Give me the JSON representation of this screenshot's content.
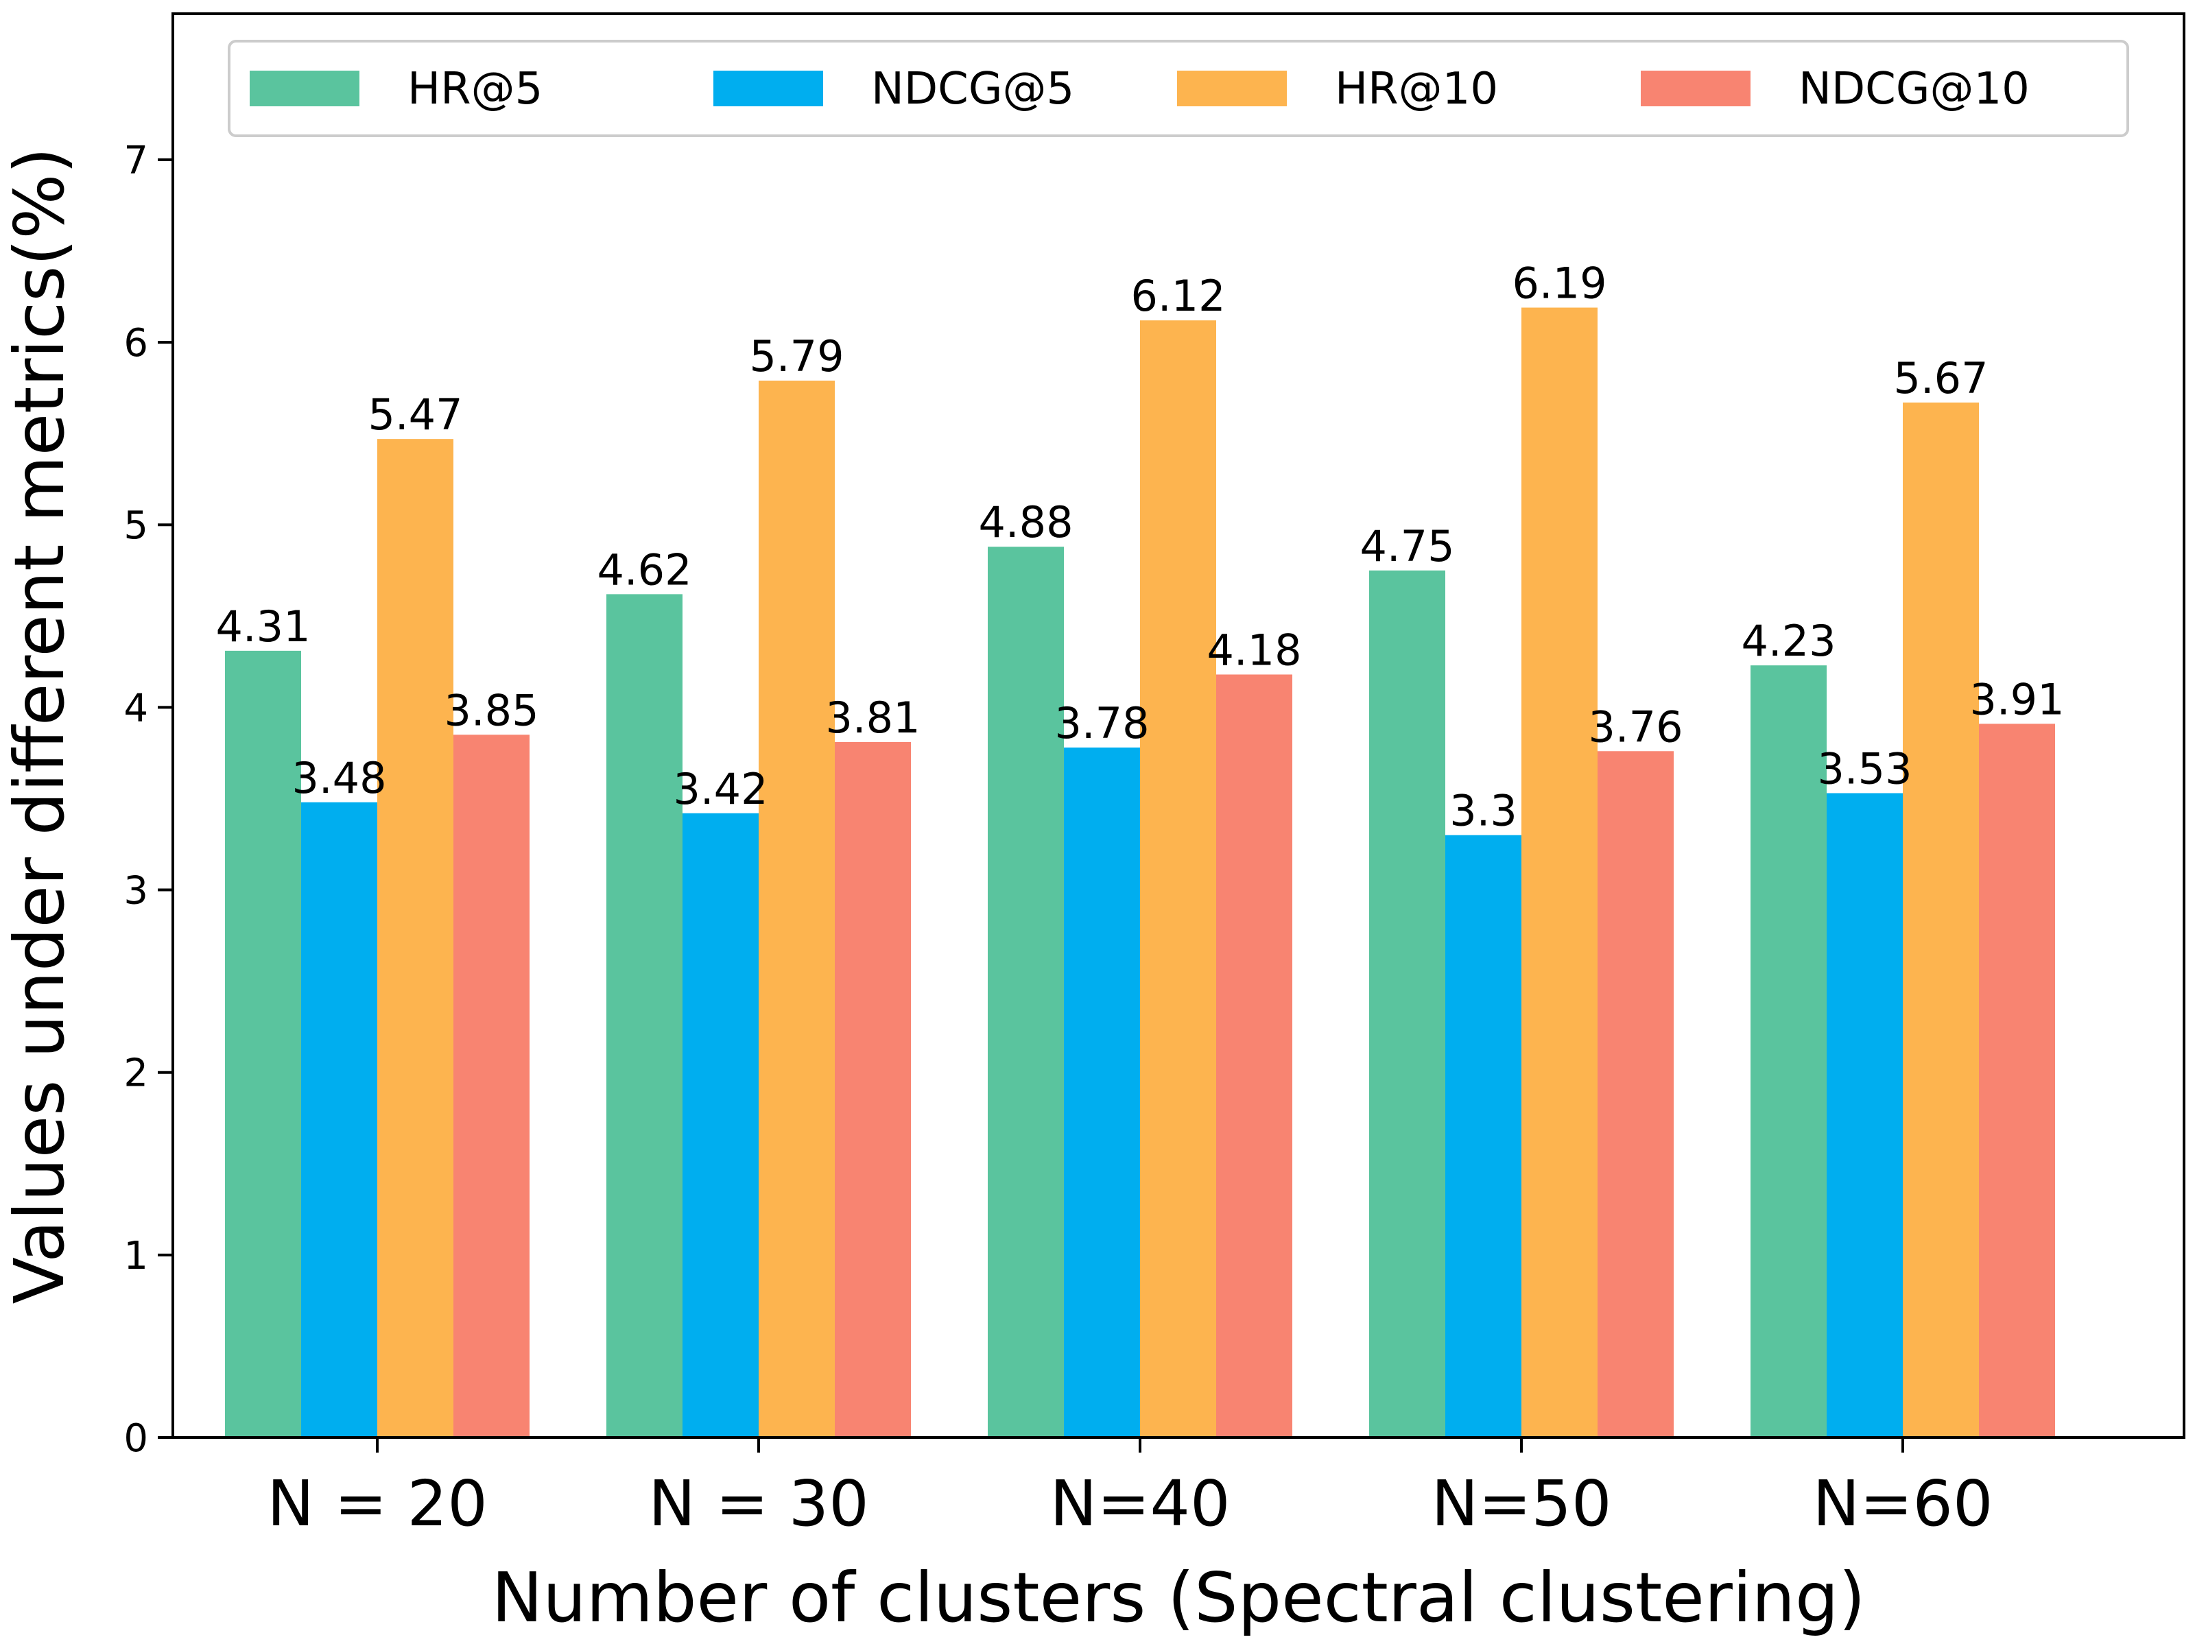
{
  "chart_data": {
    "type": "bar",
    "title": "",
    "xlabel": "Number of clusters (Spectral clustering)",
    "ylabel": "Values under different metrics(%)",
    "ylim": [
      0,
      7.8
    ],
    "yticks": [
      0,
      1,
      2,
      3,
      4,
      5,
      6,
      7
    ],
    "grid": false,
    "legend_position": "top",
    "categories": [
      "N = 20",
      "N = 30",
      "N=40",
      "N=50",
      "N=60"
    ],
    "series": [
      {
        "name": "HR@5",
        "color": "#5ac49e",
        "values": [
          4.31,
          4.62,
          4.88,
          4.75,
          4.23
        ]
      },
      {
        "name": "NDCG@5",
        "color": "#00aeef",
        "values": [
          3.48,
          3.42,
          3.78,
          3.3,
          3.53
        ]
      },
      {
        "name": "HR@10",
        "color": "#fdb44f",
        "values": [
          5.47,
          5.79,
          6.12,
          6.19,
          5.67
        ]
      },
      {
        "name": "NDCG@10",
        "color": "#f88471",
        "values": [
          3.85,
          3.81,
          4.18,
          3.76,
          3.91
        ]
      }
    ]
  }
}
